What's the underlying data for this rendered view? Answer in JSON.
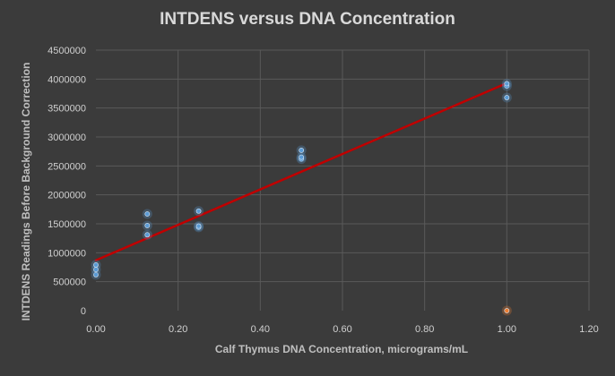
{
  "chart_data": {
    "type": "scatter",
    "title": "INTDENS versus DNA Concentration",
    "xlabel": "Calf Thymus DNA Concentration, micrograms/mL",
    "ylabel": "INTDENS Readings Before Background Correction",
    "xlim": [
      0,
      1.2
    ],
    "ylim": [
      0,
      4500000
    ],
    "x_ticks": [
      0,
      0.2,
      0.4,
      0.6,
      0.8,
      1.0,
      1.2
    ],
    "x_tick_labels": [
      "0.00",
      "0.20",
      "0.40",
      "0.60",
      "0.80",
      "1.00",
      "1.20"
    ],
    "y_ticks": [
      0,
      500000,
      1000000,
      1500000,
      2000000,
      2500000,
      3000000,
      3500000,
      4000000,
      4500000
    ],
    "y_tick_labels": [
      "0",
      "500000",
      "1000000",
      "1500000",
      "2000000",
      "2500000",
      "3000000",
      "3500000",
      "4000000",
      "4500000"
    ],
    "grid": true,
    "legend": "none",
    "series": [
      {
        "color": "#5b9bd5",
        "x": [
          0,
          0,
          0,
          0.125,
          0.125,
          0.125,
          0.25,
          0.25,
          0.25,
          0.5,
          0.5,
          0.5,
          1.0,
          1.0,
          1.0
        ],
        "y": [
          620000,
          710000,
          790000,
          1310000,
          1470000,
          1670000,
          1440000,
          1460000,
          1720000,
          2620000,
          2650000,
          2770000,
          3680000,
          3880000,
          3920000
        ]
      },
      {
        "color": "#ed7d31",
        "x": [
          1.0
        ],
        "y": [
          0
        ]
      }
    ],
    "trendline": {
      "color": "#c00000",
      "x": [
        0,
        1.0
      ],
      "y": [
        870000,
        3930000
      ]
    }
  }
}
